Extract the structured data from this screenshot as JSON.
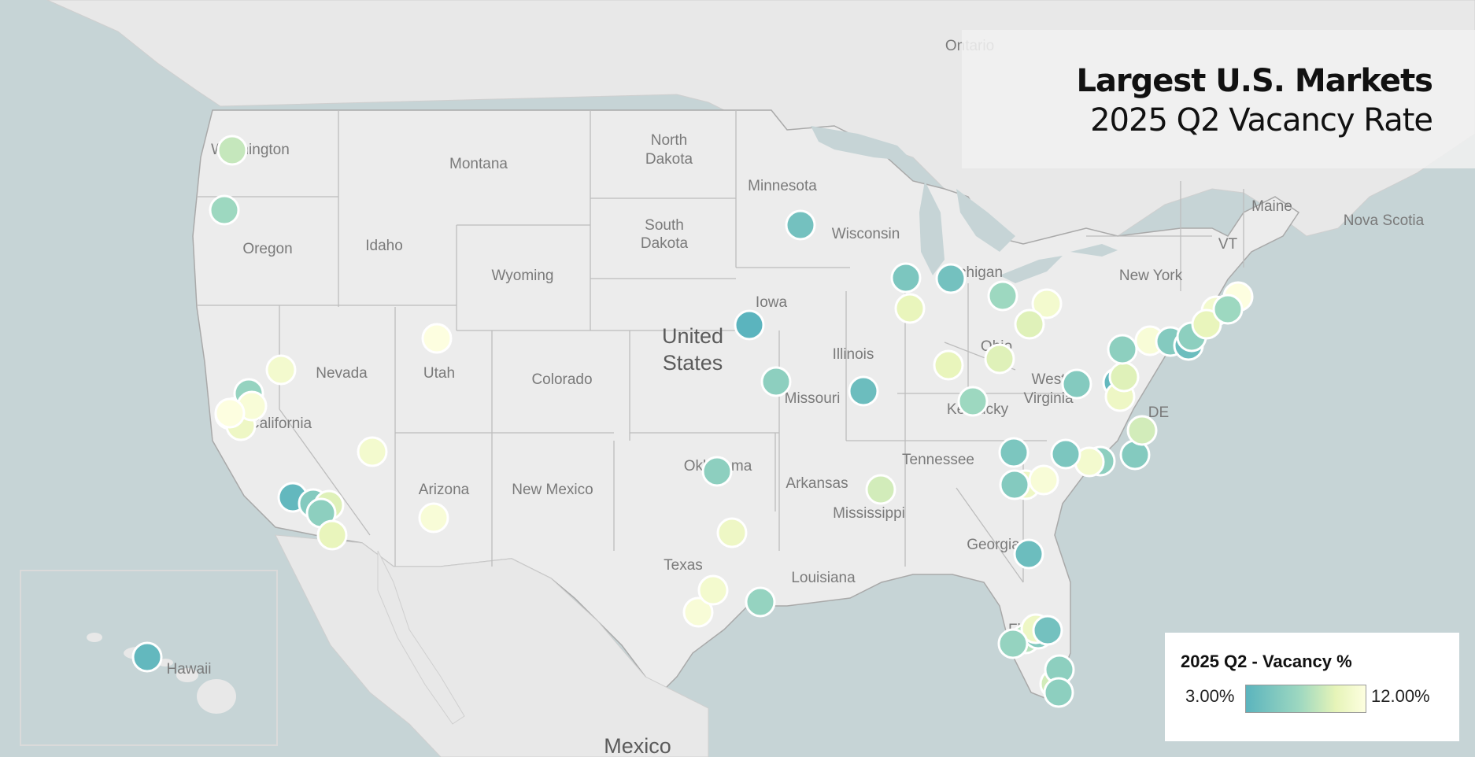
{
  "title": {
    "line1": "Largest U.S. Markets",
    "line2": "2025 Q2 Vacancy Rate"
  },
  "legend": {
    "title": "2025 Q2 - Vacancy %",
    "min_label": "3.00%",
    "max_label": "12.00%",
    "min_value": 3.0,
    "max_value": 12.0,
    "colors": [
      "#5bb4be",
      "#9ed8c0",
      "#e6f4b8",
      "#fdfee0"
    ]
  },
  "colors": {
    "ocean": "#c6d4d6",
    "land": "#ececec",
    "border": "#b9b9b9",
    "marker_stroke": "#ffffff"
  },
  "map_labels": {
    "washington": "Washington",
    "oregon": "Oregon",
    "idaho": "Idaho",
    "montana": "Montana",
    "wyoming": "Wyoming",
    "north_dakota_1": "North",
    "north_dakota_2": "Dakota",
    "south_dakota_1": "South",
    "south_dakota_2": "Dakota",
    "minnesota": "Minnesota",
    "wisconsin": "Wisconsin",
    "michigan": "Michigan",
    "iowa": "Iowa",
    "illinois": "Illinois",
    "missouri": "Missouri",
    "nevada": "Nevada",
    "utah": "Utah",
    "colorado": "Colorado",
    "california": "California",
    "arizona": "Arizona",
    "new_mexico": "New Mexico",
    "oklahoma": "Oklahoma",
    "texas": "Texas",
    "arkansas": "Arkansas",
    "mississippi": "Mississippi",
    "louisiana": "Louisiana",
    "tennessee": "Tennessee",
    "kentucky": "Kentucky",
    "ohio": "Ohio",
    "west_virginia_1": "West",
    "west_virginia_2": "Virginia",
    "georgia": "Georgia",
    "florida": "Florida",
    "new_york": "New York",
    "vt": "VT",
    "maine": "Maine",
    "de": "DE",
    "nova_scotia": "Nova Scotia",
    "ontario": "Ontario",
    "us_1": "United",
    "us_2": "States",
    "mexico": "Mexico",
    "hawaii": "Hawaii"
  },
  "markets": [
    {
      "vacancy": 8.5
    },
    {
      "vacancy": 7.0
    },
    {
      "vacancy": 8.5
    },
    {
      "vacancy": 11.0
    },
    {
      "vacancy": 6.5
    },
    {
      "vacancy": 9.0
    },
    {
      "vacancy": 10.5
    },
    {
      "vacancy": 11.5
    },
    {
      "vacancy": 12.0
    },
    {
      "vacancy": 11.0
    },
    {
      "vacancy": 3.5
    },
    {
      "vacancy": 5.5
    },
    {
      "vacancy": 9.5
    },
    {
      "vacancy": 6.0
    },
    {
      "vacancy": 10.0
    },
    {
      "vacancy": 11.5
    },
    {
      "vacancy": 12.0
    },
    {
      "vacancy": 4.5
    },
    {
      "vacancy": 3.0
    },
    {
      "vacancy": 6.0
    },
    {
      "vacancy": 9.0
    },
    {
      "vacancy": 11.0
    },
    {
      "vacancy": 7.0
    },
    {
      "vacancy": 10.0
    },
    {
      "vacancy": 9.5
    },
    {
      "vacancy": 4.0
    },
    {
      "vacancy": 5.0
    },
    {
      "vacancy": 6.0
    },
    {
      "vacancy": 3.5
    },
    {
      "vacancy": 6.0
    },
    {
      "vacancy": 10.5
    },
    {
      "vacancy": 6.5
    },
    {
      "vacancy": 5.0
    },
    {
      "vacancy": 10.0
    },
    {
      "vacancy": 4.5
    },
    {
      "vacancy": 7.0
    },
    {
      "vacancy": 9.5
    },
    {
      "vacancy": 11.0
    },
    {
      "vacancy": 5.5
    },
    {
      "vacancy": 10.5
    },
    {
      "vacancy": 9.5
    },
    {
      "vacancy": 6.0
    },
    {
      "vacancy": 5.5
    },
    {
      "vacancy": 10.5
    },
    {
      "vacancy": 11.5
    },
    {
      "vacancy": 5.0
    },
    {
      "vacancy": 5.5
    },
    {
      "vacancy": 11.5
    },
    {
      "vacancy": 11.0
    },
    {
      "vacancy": 4.0
    },
    {
      "vacancy": 8.0
    },
    {
      "vacancy": 5.5
    },
    {
      "vacancy": 10.5
    },
    {
      "vacancy": 9.0
    },
    {
      "vacancy": 6.0
    },
    {
      "vacancy": 4.5
    },
    {
      "vacancy": 9.0
    },
    {
      "vacancy": 11.5
    },
    {
      "vacancy": 5.5
    },
    {
      "vacancy": 4.0
    },
    {
      "vacancy": 11.0
    },
    {
      "vacancy": 12.0
    },
    {
      "vacancy": 6.0
    },
    {
      "vacancy": 10.0
    },
    {
      "vacancy": 7.0
    },
    {
      "vacancy": 6.0
    },
    {
      "vacancy": 6.5
    },
    {
      "vacancy": 3.5
    }
  ]
}
